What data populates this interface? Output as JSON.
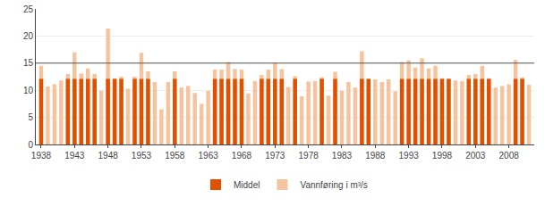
{
  "chart_data": {
    "type": "bar",
    "x": [
      1938,
      1939,
      1940,
      1941,
      1942,
      1943,
      1944,
      1945,
      1946,
      1947,
      1948,
      1949,
      1950,
      1951,
      1952,
      1953,
      1954,
      1955,
      1956,
      1957,
      1958,
      1959,
      1960,
      1961,
      1962,
      1963,
      1964,
      1965,
      1966,
      1967,
      1968,
      1969,
      1970,
      1971,
      1972,
      1973,
      1974,
      1975,
      1976,
      1977,
      1978,
      1979,
      1980,
      1981,
      1982,
      1983,
      1984,
      1985,
      1986,
      1987,
      1988,
      1989,
      1990,
      1991,
      1992,
      1993,
      1994,
      1995,
      1996,
      1997,
      1998,
      1999,
      2000,
      2001,
      2002,
      2003,
      2004,
      2005,
      2006,
      2007,
      2008,
      2009,
      2010,
      2011
    ],
    "series": [
      {
        "name": "Vannføring i m³/s",
        "color": "#F5C49E",
        "values": [
          14.5,
          10.7,
          11.1,
          11.8,
          13.0,
          17.0,
          13.1,
          14.0,
          13.0,
          9.9,
          21.4,
          12.2,
          12.5,
          10.3,
          12.5,
          16.9,
          13.5,
          11.5,
          6.5,
          11.5,
          13.5,
          10.5,
          10.8,
          9.5,
          7.5,
          9.9,
          13.8,
          13.8,
          15.2,
          13.9,
          13.8,
          9.4,
          11.7,
          12.8,
          13.8,
          15.1,
          13.9,
          10.6,
          12.6,
          8.9,
          11.6,
          11.7,
          12.4,
          9.0,
          13.4,
          9.9,
          11.5,
          10.5,
          17.2,
          12.1,
          12.0,
          11.5,
          12.0,
          9.8,
          15.2,
          15.5,
          14.2,
          15.9,
          14.0,
          14.5,
          12.2,
          12.1,
          11.8,
          11.7,
          12.8,
          13.0,
          14.5,
          12.2,
          10.5,
          10.8,
          11.1,
          15.6,
          12.4,
          11.0
        ]
      },
      {
        "name": "Middel",
        "color": "#E05000",
        "values": [
          12.1,
          null,
          null,
          null,
          12.1,
          12.1,
          12.1,
          12.1,
          12.1,
          null,
          12.1,
          12.1,
          12.1,
          null,
          12.1,
          12.1,
          12.1,
          null,
          null,
          null,
          12.1,
          null,
          null,
          null,
          null,
          null,
          12.1,
          12.1,
          12.1,
          12.1,
          12.1,
          null,
          null,
          12.1,
          12.1,
          12.1,
          12.1,
          null,
          12.1,
          null,
          null,
          null,
          12.1,
          null,
          12.1,
          null,
          null,
          null,
          12.1,
          12.1,
          null,
          null,
          null,
          null,
          12.1,
          12.1,
          12.1,
          12.1,
          12.1,
          12.1,
          12.1,
          12.1,
          null,
          null,
          12.1,
          12.1,
          12.1,
          12.1,
          null,
          null,
          null,
          12.1,
          12.1,
          null
        ]
      }
    ],
    "hlines": [
      {
        "y": 15.0,
        "color": "#555555"
      }
    ],
    "xlim": [
      1937.2,
      2011.8
    ],
    "xticks": [
      1938,
      1943,
      1948,
      1953,
      1958,
      1963,
      1968,
      1973,
      1978,
      1983,
      1988,
      1993,
      1998,
      2003,
      2008
    ],
    "ylim": [
      0,
      25
    ],
    "yticks": [
      0,
      5,
      10,
      15,
      20,
      25
    ],
    "grid": true,
    "legend": "bottom"
  }
}
